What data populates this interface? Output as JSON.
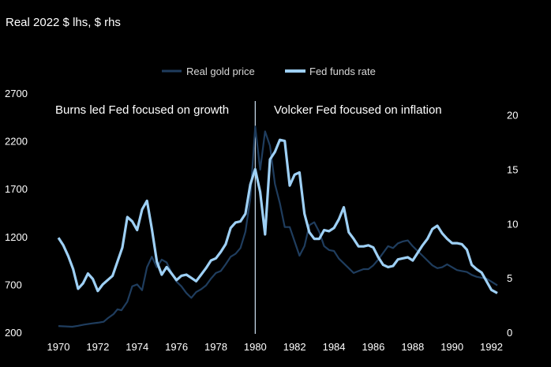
{
  "chart_data": {
    "type": "line",
    "subtitle": "Real 2022 $ lhs, $ rhs",
    "legend": [
      "Real gold price",
      "Fed  funds rate"
    ],
    "colors": {
      "gold": "#1f3d5e",
      "fed": "#9ed0f5",
      "background": "#000000",
      "divider": "#cfe3f5"
    },
    "xlim": [
      1970,
      1992.3
    ],
    "x_ticks": [
      1970,
      1972,
      1974,
      1976,
      1978,
      1980,
      1982,
      1984,
      1986,
      1988,
      1990,
      1992
    ],
    "y_left": {
      "range": [
        200,
        2700
      ],
      "ticks": [
        200,
        700,
        1200,
        1700,
        2200,
        2700
      ]
    },
    "y_right": {
      "range": [
        0,
        22
      ],
      "ticks": [
        0,
        5,
        10,
        15,
        20
      ]
    },
    "divider_year": 1980,
    "annotations": {
      "left": "Burns led Fed focused on growth",
      "right": "Volcker Fed focused on inflation"
    },
    "series": [
      {
        "name": "Real gold price",
        "axis": "left",
        "points": [
          [
            1970.0,
            265
          ],
          [
            1970.3,
            262
          ],
          [
            1970.7,
            258
          ],
          [
            1971.0,
            268
          ],
          [
            1971.3,
            280
          ],
          [
            1971.7,
            292
          ],
          [
            1972.0,
            300
          ],
          [
            1972.3,
            310
          ],
          [
            1972.5,
            345
          ],
          [
            1972.8,
            390
          ],
          [
            1973.0,
            440
          ],
          [
            1973.2,
            430
          ],
          [
            1973.5,
            520
          ],
          [
            1973.75,
            680
          ],
          [
            1974.0,
            700
          ],
          [
            1974.25,
            640
          ],
          [
            1974.5,
            880
          ],
          [
            1974.75,
            990
          ],
          [
            1975.0,
            880
          ],
          [
            1975.25,
            960
          ],
          [
            1975.5,
            930
          ],
          [
            1975.75,
            820
          ],
          [
            1976.0,
            730
          ],
          [
            1976.25,
            680
          ],
          [
            1976.5,
            610
          ],
          [
            1976.75,
            560
          ],
          [
            1977.0,
            620
          ],
          [
            1977.25,
            650
          ],
          [
            1977.5,
            690
          ],
          [
            1977.75,
            760
          ],
          [
            1978.0,
            820
          ],
          [
            1978.25,
            840
          ],
          [
            1978.5,
            910
          ],
          [
            1978.75,
            990
          ],
          [
            1979.0,
            1020
          ],
          [
            1979.25,
            1080
          ],
          [
            1979.5,
            1250
          ],
          [
            1979.75,
            1600
          ],
          [
            1980.0,
            2350
          ],
          [
            1980.25,
            1900
          ],
          [
            1980.5,
            2300
          ],
          [
            1980.75,
            2150
          ],
          [
            1981.0,
            1750
          ],
          [
            1981.25,
            1550
          ],
          [
            1981.5,
            1300
          ],
          [
            1981.75,
            1300
          ],
          [
            1982.0,
            1150
          ],
          [
            1982.25,
            1000
          ],
          [
            1982.5,
            1100
          ],
          [
            1982.75,
            1320
          ],
          [
            1983.0,
            1350
          ],
          [
            1983.25,
            1250
          ],
          [
            1983.5,
            1100
          ],
          [
            1983.75,
            1060
          ],
          [
            1984.0,
            1050
          ],
          [
            1984.25,
            970
          ],
          [
            1984.5,
            920
          ],
          [
            1984.75,
            870
          ],
          [
            1985.0,
            820
          ],
          [
            1985.25,
            840
          ],
          [
            1985.5,
            860
          ],
          [
            1985.75,
            860
          ],
          [
            1986.0,
            900
          ],
          [
            1986.25,
            960
          ],
          [
            1986.5,
            1030
          ],
          [
            1986.75,
            1100
          ],
          [
            1987.0,
            1080
          ],
          [
            1987.25,
            1130
          ],
          [
            1987.5,
            1150
          ],
          [
            1987.75,
            1160
          ],
          [
            1988.0,
            1100
          ],
          [
            1988.25,
            1050
          ],
          [
            1988.5,
            1000
          ],
          [
            1988.75,
            950
          ],
          [
            1989.0,
            900
          ],
          [
            1989.25,
            870
          ],
          [
            1989.5,
            880
          ],
          [
            1989.75,
            910
          ],
          [
            1990.0,
            880
          ],
          [
            1990.25,
            850
          ],
          [
            1990.5,
            840
          ],
          [
            1990.75,
            830
          ],
          [
            1991.0,
            800
          ],
          [
            1991.25,
            780
          ],
          [
            1991.5,
            770
          ],
          [
            1991.75,
            760
          ],
          [
            1992.0,
            730
          ],
          [
            1992.3,
            690
          ]
        ]
      },
      {
        "name": "Fed  funds rate",
        "axis": "right",
        "points": [
          [
            1970.0,
            8.7
          ],
          [
            1970.25,
            8.0
          ],
          [
            1970.5,
            7.0
          ],
          [
            1970.75,
            5.8
          ],
          [
            1971.0,
            4.0
          ],
          [
            1971.25,
            4.5
          ],
          [
            1971.5,
            5.4
          ],
          [
            1971.75,
            4.9
          ],
          [
            1972.0,
            3.8
          ],
          [
            1972.25,
            4.4
          ],
          [
            1972.5,
            4.8
          ],
          [
            1972.75,
            5.2
          ],
          [
            1973.0,
            6.5
          ],
          [
            1973.25,
            7.8
          ],
          [
            1973.5,
            10.6
          ],
          [
            1973.75,
            10.2
          ],
          [
            1974.0,
            9.4
          ],
          [
            1974.25,
            11.3
          ],
          [
            1974.5,
            12.1
          ],
          [
            1974.75,
            9.5
          ],
          [
            1975.0,
            6.5
          ],
          [
            1975.25,
            5.3
          ],
          [
            1975.5,
            6.0
          ],
          [
            1975.75,
            5.4
          ],
          [
            1976.0,
            4.8
          ],
          [
            1976.25,
            5.2
          ],
          [
            1976.5,
            5.3
          ],
          [
            1976.75,
            5.0
          ],
          [
            1977.0,
            4.7
          ],
          [
            1977.25,
            5.3
          ],
          [
            1977.5,
            5.9
          ],
          [
            1977.75,
            6.6
          ],
          [
            1978.0,
            6.8
          ],
          [
            1978.25,
            7.4
          ],
          [
            1978.5,
            8.1
          ],
          [
            1978.75,
            9.6
          ],
          [
            1979.0,
            10.1
          ],
          [
            1979.25,
            10.2
          ],
          [
            1979.5,
            10.9
          ],
          [
            1979.75,
            13.6
          ],
          [
            1980.0,
            15.0
          ],
          [
            1980.25,
            12.9
          ],
          [
            1980.5,
            9.0
          ],
          [
            1980.75,
            15.9
          ],
          [
            1981.0,
            16.6
          ],
          [
            1981.25,
            17.7
          ],
          [
            1981.5,
            17.6
          ],
          [
            1981.75,
            13.5
          ],
          [
            1982.0,
            14.5
          ],
          [
            1982.25,
            14.7
          ],
          [
            1982.5,
            10.9
          ],
          [
            1982.75,
            9.2
          ],
          [
            1983.0,
            8.6
          ],
          [
            1983.25,
            8.6
          ],
          [
            1983.5,
            9.4
          ],
          [
            1983.75,
            9.3
          ],
          [
            1984.0,
            9.6
          ],
          [
            1984.25,
            10.4
          ],
          [
            1984.5,
            11.5
          ],
          [
            1984.75,
            9.2
          ],
          [
            1985.0,
            8.6
          ],
          [
            1985.25,
            7.9
          ],
          [
            1985.5,
            7.9
          ],
          [
            1985.75,
            8.0
          ],
          [
            1986.0,
            7.8
          ],
          [
            1986.25,
            6.9
          ],
          [
            1986.5,
            6.2
          ],
          [
            1986.75,
            6.0
          ],
          [
            1987.0,
            6.1
          ],
          [
            1987.25,
            6.7
          ],
          [
            1987.5,
            6.8
          ],
          [
            1987.75,
            6.9
          ],
          [
            1988.0,
            6.6
          ],
          [
            1988.25,
            7.3
          ],
          [
            1988.5,
            8.0
          ],
          [
            1988.75,
            8.6
          ],
          [
            1989.0,
            9.5
          ],
          [
            1989.25,
            9.8
          ],
          [
            1989.5,
            9.1
          ],
          [
            1989.75,
            8.6
          ],
          [
            1990.0,
            8.2
          ],
          [
            1990.25,
            8.2
          ],
          [
            1990.5,
            8.1
          ],
          [
            1990.75,
            7.6
          ],
          [
            1991.0,
            6.2
          ],
          [
            1991.25,
            5.8
          ],
          [
            1991.5,
            5.5
          ],
          [
            1991.75,
            4.7
          ],
          [
            1992.0,
            3.9
          ],
          [
            1992.3,
            3.6
          ]
        ]
      }
    ]
  }
}
